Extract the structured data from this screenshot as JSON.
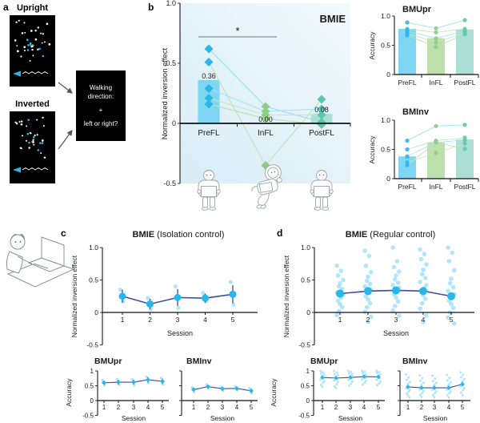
{
  "figure": {
    "panel_labels": {
      "a": "a",
      "b": "b",
      "c": "c",
      "d": "d"
    }
  },
  "panel_a": {
    "upright_label": "Upright",
    "inverted_label": "Inverted",
    "task_lines": [
      "Walking",
      "direction:",
      "+",
      "left or right?"
    ],
    "stimulus_icon": "point-light-walker"
  },
  "icons": {
    "prefl": "standing-participant-with-laptop",
    "infl": "floating-astronaut-with-laptop",
    "postfl": "standing-participant-with-laptop",
    "corner": "participant-at-computer"
  },
  "colors": {
    "cyan_strong": "#29b6e9",
    "cyan_bar": "#7fd6f3",
    "cyan_light": "#8fdbf6",
    "green_strong": "#8fcb8b",
    "green_bar": "#bcdfab",
    "teal_strong": "#5ec5b2",
    "teal_bar": "#abdfd3",
    "navy": "#3d4c9e",
    "axis": "#2b2b2b",
    "subject_lines": [
      "#9bdcf1",
      "#bfe4b7",
      "#a5e1f7",
      "#c6e8bf",
      "#b7e2ae"
    ],
    "bg_grad_top": "#f3fafd",
    "bg_grad_bottom": "#d8ecf6"
  },
  "chart_data": [
    {
      "id": "bmie-main",
      "type": "bar",
      "title": "BMIE",
      "ylabel": "Normalized inversion effect",
      "ylim": [
        -0.5,
        1.0
      ],
      "yticks": [
        1.0,
        0.5,
        0,
        -0.5
      ],
      "ytick_labels": [
        "1.0",
        "0.5",
        "0",
        "-0.5"
      ],
      "categories": [
        "PreFL",
        "InFL",
        "PostFL"
      ],
      "bar_values": [
        0.36,
        0.0,
        0.08
      ],
      "bar_labels": [
        "0.36",
        "0.00",
        "0.08"
      ],
      "subjects": [
        [
          0.62,
          0.14,
          0.01
        ],
        [
          0.51,
          -0.35,
          0.2
        ],
        [
          0.29,
          0.1,
          0.12
        ],
        [
          0.21,
          0.07,
          0.07
        ],
        [
          0.16,
          0.04,
          -0.01
        ]
      ],
      "significance": {
        "between": [
          "PreFL",
          "InFL"
        ],
        "label": "*"
      }
    },
    {
      "id": "bmupr-b",
      "type": "bar",
      "title": "BMUpr",
      "ylabel": "Accuracy",
      "ylim": [
        0,
        1.0
      ],
      "yticks": [
        1.0,
        0.5,
        0
      ],
      "ytick_labels": [
        "1.0",
        "0.5",
        "0"
      ],
      "categories": [
        "PreFL",
        "InFL",
        "PostFL"
      ],
      "bar_values": [
        0.78,
        0.62,
        0.77
      ],
      "subjects": [
        [
          0.89,
          0.79,
          0.93
        ],
        [
          0.78,
          0.72,
          0.78
        ],
        [
          0.74,
          0.62,
          0.74
        ],
        [
          0.7,
          0.55,
          0.71
        ],
        [
          0.67,
          0.47,
          0.69
        ]
      ]
    },
    {
      "id": "bminv-b",
      "type": "bar",
      "title": "BMInv",
      "ylabel": "Accuracy",
      "ylim": [
        0,
        1.0
      ],
      "yticks": [
        1.0,
        0.5,
        0
      ],
      "ytick_labels": [
        "1.0",
        "0.5",
        "0"
      ],
      "categories": [
        "PreFL",
        "InFL",
        "PostFL"
      ],
      "bar_values": [
        0.38,
        0.62,
        0.67
      ],
      "subjects": [
        [
          0.65,
          0.9,
          0.92
        ],
        [
          0.5,
          0.65,
          0.7
        ],
        [
          0.38,
          0.62,
          0.66
        ],
        [
          0.28,
          0.44,
          0.6
        ],
        [
          0.23,
          0.62,
          0.51
        ]
      ]
    },
    {
      "id": "bmie-c",
      "type": "line",
      "title_bold": "BMIE",
      "title_rest": " (Isolation control)",
      "xlabel": "Session",
      "ylabel": "Normalized inversion effect",
      "ylim": [
        -0.5,
        1.0
      ],
      "yticks": [
        1.0,
        0.5,
        0,
        -0.5
      ],
      "ytick_labels": [
        "1.0",
        "0.5",
        "0",
        "-0.5"
      ],
      "x": [
        "1",
        "2",
        "3",
        "4",
        "5"
      ],
      "mean": [
        0.25,
        0.13,
        0.23,
        0.22,
        0.28
      ],
      "err": [
        0.1,
        0.08,
        0.13,
        0.07,
        0.14
      ],
      "scatter": [
        [
          0.35,
          0.17
        ],
        [
          0.22,
          0.05
        ],
        [
          0.4,
          0.07
        ],
        [
          0.3,
          0.17
        ],
        [
          0.47,
          0.12
        ]
      ]
    },
    {
      "id": "bmupr-c",
      "type": "line",
      "title_bold": "BMUpr",
      "title_rest": "",
      "xlabel": "Session",
      "ylabel": "Accuracy",
      "ylim": [
        -0.5,
        1.0
      ],
      "yticks": [
        1,
        0.5,
        0,
        -0.5
      ],
      "ytick_labels": [
        "1",
        "0.5",
        "0",
        "-0.5"
      ],
      "x": [
        "1",
        "2",
        "3",
        "4",
        "5"
      ],
      "mean": [
        0.6,
        0.62,
        0.62,
        0.7,
        0.65
      ],
      "err": [
        0.07,
        0.08,
        0.08,
        0.09,
        0.09
      ],
      "scatter": [
        [
          0.68,
          0.52
        ],
        [
          0.72,
          0.53
        ],
        [
          0.71,
          0.52
        ],
        [
          0.8,
          0.6
        ],
        [
          0.76,
          0.55
        ]
      ]
    },
    {
      "id": "bminv-c",
      "type": "line",
      "title_bold": "BMInv",
      "title_rest": "",
      "xlabel": "Session",
      "ylabel": "",
      "ylim": [
        -0.5,
        1.0
      ],
      "yticks": [
        1,
        0.5,
        0,
        -0.5
      ],
      "ytick_labels": [],
      "x": [
        "1",
        "2",
        "3",
        "4",
        "5"
      ],
      "mean": [
        0.37,
        0.47,
        0.4,
        0.41,
        0.33
      ],
      "err": [
        0.06,
        0.05,
        0.05,
        0.05,
        0.07
      ],
      "scatter": [
        [
          0.44,
          0.29
        ],
        [
          0.54,
          0.41
        ],
        [
          0.47,
          0.34
        ],
        [
          0.48,
          0.35
        ],
        [
          0.42,
          0.25
        ]
      ]
    },
    {
      "id": "bmie-d",
      "type": "line",
      "title_bold": "BMIE",
      "title_rest": " (Regular control)",
      "xlabel": "Session",
      "ylabel": "Normalized inversion effect",
      "ylim": [
        -0.5,
        1.0
      ],
      "yticks": [
        1.0,
        0.5,
        0,
        -0.5
      ],
      "ytick_labels": [
        "1.0",
        "0.5",
        "0",
        "-0.5"
      ],
      "x": [
        "1",
        "2",
        "3",
        "4",
        "5"
      ],
      "mean": [
        0.29,
        0.33,
        0.34,
        0.33,
        0.25
      ],
      "err": [
        0.05,
        0.06,
        0.06,
        0.05,
        0.06
      ],
      "scatter": [
        [
          0.72,
          0.64,
          0.57,
          0.5,
          0.45,
          0.4,
          0.36,
          0.31,
          0.27,
          0.23,
          0.18,
          0.13,
          0.08,
          0.02,
          -0.04
        ],
        [
          0.95,
          0.87,
          0.72,
          0.62,
          0.55,
          0.49,
          0.44,
          0.4,
          0.35,
          0.3,
          0.25,
          0.2,
          0.14,
          0.08,
          0.01,
          -0.07,
          -0.14
        ],
        [
          1.0,
          0.79,
          0.7,
          0.63,
          0.57,
          0.51,
          0.46,
          0.42,
          0.38,
          0.33,
          0.28,
          0.23,
          0.17,
          0.1,
          0.03,
          -0.05
        ],
        [
          0.97,
          0.9,
          0.82,
          0.74,
          0.66,
          0.59,
          0.53,
          0.47,
          0.42,
          0.37,
          0.32,
          0.27,
          0.21,
          0.14,
          0.06,
          -0.05,
          -0.15
        ],
        [
          1.0,
          0.92,
          0.79,
          0.65,
          0.52,
          0.45,
          0.39,
          0.33,
          0.28,
          0.23,
          0.18,
          0.13,
          0.07,
          0.0,
          -0.08,
          -0.17
        ]
      ]
    },
    {
      "id": "bmupr-d",
      "type": "line",
      "title_bold": "BMUpr",
      "title_rest": "",
      "xlabel": "Session",
      "ylabel": "Accuracy",
      "ylim": [
        -0.5,
        1.0
      ],
      "yticks": [
        1,
        0.5,
        0,
        -0.5
      ],
      "ytick_labels": [
        "1",
        "0.5",
        "0",
        "-0.5"
      ],
      "x": [
        "1",
        "2",
        "3",
        "4",
        "5"
      ],
      "mean": [
        0.78,
        0.76,
        0.78,
        0.81,
        0.8
      ],
      "err": [
        0.05,
        0.06,
        0.05,
        0.05,
        0.05
      ],
      "scatter": [
        [
          1.0,
          0.96,
          0.92,
          0.88,
          0.84,
          0.8,
          0.76,
          0.71,
          0.66,
          0.6,
          0.53,
          0.46
        ],
        [
          1.0,
          0.95,
          0.9,
          0.86,
          0.82,
          0.78,
          0.73,
          0.68,
          0.62,
          0.55,
          0.48,
          0.42
        ],
        [
          1.0,
          0.96,
          0.92,
          0.88,
          0.84,
          0.8,
          0.75,
          0.7,
          0.64,
          0.57,
          0.5
        ],
        [
          1.0,
          0.97,
          0.93,
          0.89,
          0.85,
          0.81,
          0.77,
          0.72,
          0.66,
          0.6,
          0.54
        ],
        [
          1.0,
          0.96,
          0.93,
          0.89,
          0.85,
          0.81,
          0.76,
          0.7,
          0.64,
          0.58,
          0.52
        ]
      ]
    },
    {
      "id": "bminv-d",
      "type": "line",
      "title_bold": "BMInv",
      "title_rest": "",
      "xlabel": "Session",
      "ylabel": "",
      "ylim": [
        -0.5,
        1.0
      ],
      "yticks": [
        1,
        0.5,
        0,
        -0.5
      ],
      "ytick_labels": [],
      "x": [
        "1",
        "2",
        "3",
        "4",
        "5"
      ],
      "mean": [
        0.46,
        0.43,
        0.43,
        0.43,
        0.55
      ],
      "err": [
        0.06,
        0.06,
        0.06,
        0.06,
        0.07
      ],
      "scatter": [
        [
          0.88,
          0.78,
          0.7,
          0.63,
          0.57,
          0.51,
          0.46,
          0.41,
          0.36,
          0.3,
          0.24,
          0.17,
          0.1
        ],
        [
          0.85,
          0.75,
          0.67,
          0.6,
          0.54,
          0.48,
          0.43,
          0.38,
          0.32,
          0.26,
          0.2,
          0.13
        ],
        [
          0.84,
          0.74,
          0.66,
          0.6,
          0.54,
          0.48,
          0.43,
          0.37,
          0.31,
          0.25,
          0.18,
          0.11
        ],
        [
          0.86,
          0.76,
          0.68,
          0.61,
          0.55,
          0.49,
          0.43,
          0.37,
          0.31,
          0.25,
          0.18,
          0.1
        ],
        [
          0.95,
          0.87,
          0.79,
          0.72,
          0.66,
          0.6,
          0.54,
          0.48,
          0.42,
          0.35,
          0.27,
          0.18
        ]
      ]
    }
  ]
}
